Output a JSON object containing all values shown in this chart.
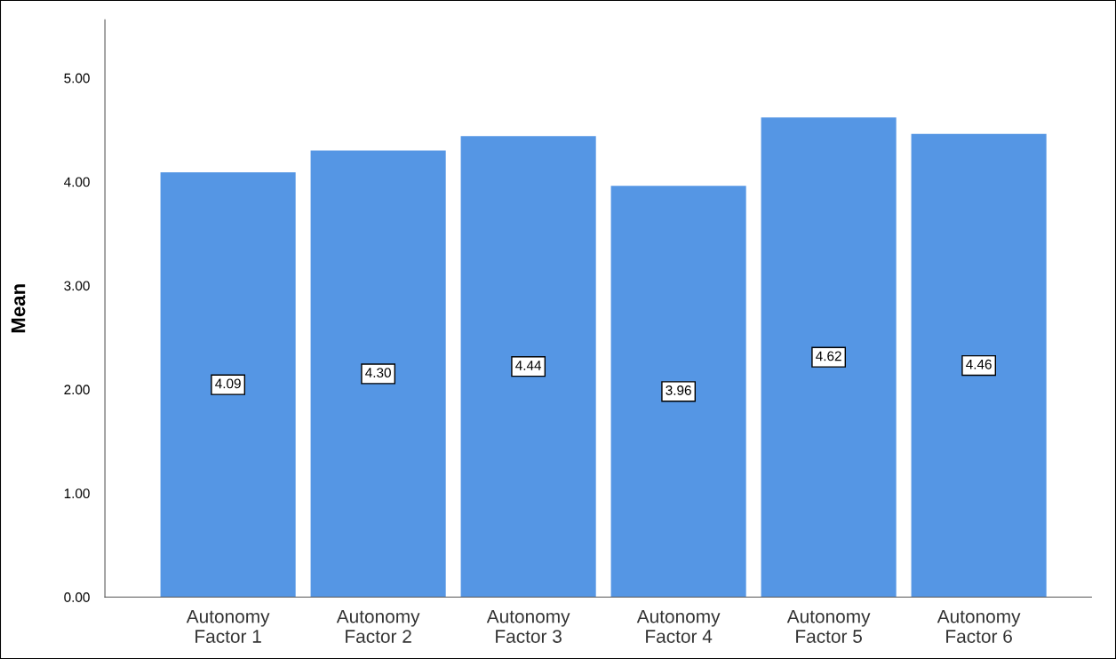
{
  "chart_data": {
    "type": "bar",
    "ylabel": "Mean",
    "categories": [
      "Autonomy\nFactor 1",
      "Autonomy\nFactor 2",
      "Autonomy\nFactor 3",
      "Autonomy\nFactor 4",
      "Autonomy\nFactor 5",
      "Autonomy\nFactor 6"
    ],
    "values": [
      4.09,
      4.3,
      4.44,
      3.96,
      4.62,
      4.46
    ],
    "value_labels": [
      "4.09",
      "4.30",
      "4.44",
      "3.96",
      "4.62",
      "4.46"
    ],
    "color": "#5596e4",
    "ylim": [
      0,
      5.56
    ],
    "yticks": [
      {
        "value": 0,
        "label": "0.00"
      },
      {
        "value": 1,
        "label": "1.00"
      },
      {
        "value": 2,
        "label": "2.00"
      },
      {
        "value": 3,
        "label": "3.00"
      },
      {
        "value": 4,
        "label": "4.00"
      },
      {
        "value": 5,
        "label": "5.00"
      }
    ],
    "grid": false
  }
}
